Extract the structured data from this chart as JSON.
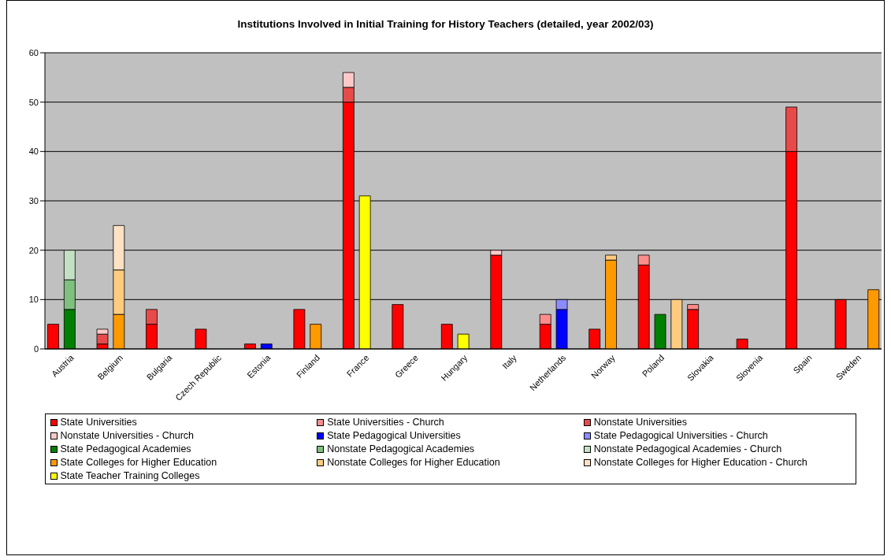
{
  "chart_data": {
    "type": "bar",
    "title": "Institutions Involved in Initial Training for History Teachers (detailed, year 2002/03)",
    "categories": [
      null,
      "Austria",
      null,
      null,
      "Belgium",
      null,
      null,
      "Bulgaria",
      null,
      null,
      "Czech Republic",
      null,
      null,
      "Estonia",
      null,
      null,
      "Finland",
      null,
      null,
      "France",
      null,
      null,
      "Greece",
      null,
      null,
      "Hungary",
      null,
      null,
      "Italy",
      null,
      null,
      "Netherlands",
      null,
      null,
      "Norway",
      null,
      null,
      "Poland",
      null,
      null,
      "Slovakia",
      null,
      null,
      "Slovenia",
      null,
      null,
      "Spain",
      null,
      null,
      "Sweden",
      null
    ],
    "stacked": true,
    "ylim": [
      0,
      60
    ],
    "yticks": [
      0,
      10,
      20,
      30,
      40,
      50,
      60
    ],
    "grid": "y",
    "legend": "bottom",
    "series": [
      {
        "name": "State Universities",
        "color": "#ff0000",
        "values": [
          5,
          null,
          null,
          1,
          null,
          null,
          5,
          null,
          null,
          4,
          null,
          null,
          1,
          null,
          null,
          8,
          null,
          null,
          50,
          null,
          null,
          9,
          null,
          null,
          5,
          null,
          null,
          19,
          null,
          null,
          5,
          null,
          null,
          4,
          null,
          null,
          17,
          null,
          null,
          8,
          null,
          null,
          2,
          null,
          null,
          40,
          null,
          null,
          10,
          null,
          null
        ]
      },
      {
        "name": "State Universities - Church",
        "color": "#ff8c8c",
        "values": [
          null,
          null,
          null,
          null,
          null,
          null,
          null,
          null,
          null,
          null,
          null,
          null,
          null,
          null,
          null,
          null,
          null,
          null,
          null,
          null,
          null,
          null,
          null,
          null,
          null,
          null,
          null,
          null,
          null,
          null,
          2,
          null,
          null,
          null,
          null,
          null,
          2,
          null,
          null,
          1,
          null,
          null,
          null,
          null,
          null,
          null,
          null,
          null,
          null,
          null,
          null
        ]
      },
      {
        "name": "Nonstate Universities",
        "color": "#e84a4a",
        "values": [
          null,
          null,
          null,
          2,
          null,
          null,
          3,
          null,
          null,
          null,
          null,
          null,
          null,
          null,
          null,
          null,
          null,
          null,
          3,
          null,
          null,
          null,
          null,
          null,
          null,
          null,
          null,
          null,
          null,
          null,
          null,
          null,
          null,
          null,
          null,
          null,
          null,
          null,
          null,
          null,
          null,
          null,
          null,
          null,
          null,
          9,
          null,
          null,
          null,
          null,
          null
        ]
      },
      {
        "name": "Nonstate Universities - Church",
        "color": "#ffc8c8",
        "values": [
          null,
          null,
          null,
          1,
          null,
          null,
          null,
          null,
          null,
          null,
          null,
          null,
          null,
          null,
          null,
          null,
          null,
          null,
          3,
          null,
          null,
          null,
          null,
          null,
          null,
          null,
          null,
          1,
          null,
          null,
          null,
          null,
          null,
          null,
          null,
          null,
          null,
          null,
          null,
          null,
          null,
          null,
          null,
          null,
          null,
          null,
          null,
          null,
          null,
          null,
          null
        ]
      },
      {
        "name": "State Pedagogical Universities",
        "color": "#0000ff",
        "values": [
          null,
          null,
          null,
          null,
          null,
          null,
          null,
          null,
          null,
          null,
          null,
          null,
          null,
          1,
          null,
          null,
          null,
          null,
          null,
          null,
          null,
          null,
          null,
          null,
          null,
          null,
          null,
          null,
          null,
          null,
          null,
          8,
          null,
          null,
          null,
          null,
          null,
          null,
          null,
          null,
          null,
          null,
          null,
          null,
          null,
          null,
          null,
          null,
          null,
          null,
          null
        ]
      },
      {
        "name": "State Pedagogical Universities - Church",
        "color": "#8c8cff",
        "values": [
          null,
          null,
          null,
          null,
          null,
          null,
          null,
          null,
          null,
          null,
          null,
          null,
          null,
          null,
          null,
          null,
          null,
          null,
          null,
          null,
          null,
          null,
          null,
          null,
          null,
          null,
          null,
          null,
          null,
          null,
          null,
          2,
          null,
          null,
          null,
          null,
          null,
          null,
          null,
          null,
          null,
          null,
          null,
          null,
          null,
          null,
          null,
          null,
          null,
          null,
          null
        ]
      },
      {
        "name": "State Pedagogical Academies",
        "color": "#008000",
        "values": [
          null,
          8,
          null,
          null,
          null,
          null,
          null,
          null,
          null,
          null,
          null,
          null,
          null,
          null,
          null,
          null,
          null,
          null,
          null,
          null,
          null,
          null,
          null,
          null,
          null,
          null,
          null,
          null,
          null,
          null,
          null,
          null,
          null,
          null,
          null,
          null,
          null,
          7,
          null,
          null,
          null,
          null,
          null,
          null,
          null,
          null,
          null,
          null,
          null,
          null,
          null
        ]
      },
      {
        "name": "Nonstate Pedagogical Academies",
        "color": "#7fbf7f",
        "values": [
          null,
          6,
          null,
          null,
          null,
          null,
          null,
          null,
          null,
          null,
          null,
          null,
          null,
          null,
          null,
          null,
          null,
          null,
          null,
          null,
          null,
          null,
          null,
          null,
          null,
          null,
          null,
          null,
          null,
          null,
          null,
          null,
          null,
          null,
          null,
          null,
          null,
          null,
          null,
          null,
          null,
          null,
          null,
          null,
          null,
          null,
          null,
          null,
          null,
          null,
          null
        ]
      },
      {
        "name": "Nonstate Pedagogical Academies - Church",
        "color": "#c4e0c4",
        "values": [
          null,
          6,
          null,
          null,
          null,
          null,
          null,
          null,
          null,
          null,
          null,
          null,
          null,
          null,
          null,
          null,
          null,
          null,
          null,
          null,
          null,
          null,
          null,
          null,
          null,
          null,
          null,
          null,
          null,
          null,
          null,
          null,
          null,
          null,
          null,
          null,
          null,
          null,
          null,
          null,
          null,
          null,
          null,
          null,
          null,
          null,
          null,
          null,
          null,
          null,
          null
        ]
      },
      {
        "name": "State Colleges for Higher Education",
        "color": "#ff9900",
        "values": [
          null,
          null,
          null,
          null,
          7,
          null,
          null,
          null,
          null,
          null,
          null,
          null,
          null,
          null,
          null,
          null,
          5,
          null,
          null,
          null,
          null,
          null,
          null,
          null,
          null,
          null,
          null,
          null,
          null,
          null,
          null,
          null,
          null,
          null,
          18,
          null,
          null,
          null,
          null,
          null,
          null,
          null,
          null,
          null,
          null,
          null,
          null,
          null,
          null,
          null,
          12
        ]
      },
      {
        "name": "Nonstate Colleges for Higher Education",
        "color": "#ffcc7f",
        "values": [
          null,
          null,
          null,
          null,
          9,
          null,
          null,
          null,
          null,
          null,
          null,
          null,
          null,
          null,
          null,
          null,
          null,
          null,
          null,
          null,
          null,
          null,
          null,
          null,
          null,
          null,
          null,
          null,
          null,
          null,
          null,
          null,
          null,
          null,
          1,
          null,
          null,
          null,
          10,
          null,
          null,
          null,
          null,
          null,
          null,
          null,
          null,
          null,
          null,
          null,
          null
        ]
      },
      {
        "name": "Nonstate Colleges for Higher Education - Church",
        "color": "#ffe2c4",
        "values": [
          null,
          null,
          null,
          null,
          9,
          null,
          null,
          null,
          null,
          null,
          null,
          null,
          null,
          null,
          null,
          null,
          null,
          null,
          null,
          null,
          null,
          null,
          null,
          null,
          null,
          null,
          null,
          null,
          null,
          null,
          null,
          null,
          null,
          null,
          null,
          null,
          null,
          null,
          null,
          null,
          null,
          null,
          null,
          null,
          null,
          null,
          null,
          null,
          null,
          null,
          null
        ]
      },
      {
        "name": "State Teacher Training Colleges",
        "color": "#ffff00",
        "values": [
          null,
          null,
          null,
          null,
          null,
          null,
          null,
          null,
          null,
          null,
          null,
          null,
          null,
          null,
          null,
          null,
          null,
          null,
          null,
          31,
          null,
          null,
          null,
          null,
          null,
          3,
          null,
          null,
          null,
          null,
          null,
          null,
          null,
          null,
          null,
          null,
          null,
          null,
          null,
          null,
          null,
          null,
          null,
          null,
          null,
          null,
          null,
          null,
          null,
          null,
          null
        ]
      }
    ]
  }
}
